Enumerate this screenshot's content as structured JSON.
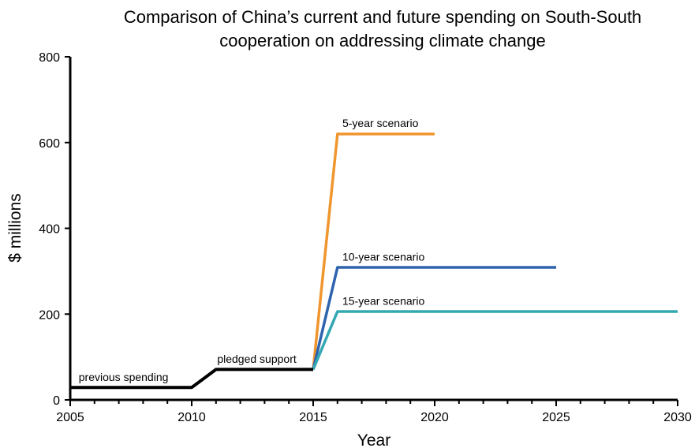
{
  "chart_data": {
    "type": "line",
    "title_lines": [
      "Comparison of China’s current and future spending on South-South",
      "cooperation on addressing climate change"
    ],
    "xlabel": "Year",
    "ylabel": "$ millions",
    "xlim": [
      2005,
      2030
    ],
    "ylim": [
      0,
      800
    ],
    "x_ticks": [
      2005,
      2010,
      2015,
      2020,
      2025,
      2030
    ],
    "y_ticks": [
      0,
      200,
      400,
      600,
      800
    ],
    "grid": false,
    "legend": "none",
    "series": [
      {
        "color": "#000000",
        "points": [
          [
            2005,
            29
          ],
          [
            2010,
            29
          ],
          [
            2011,
            71
          ],
          [
            2015,
            71
          ]
        ]
      },
      {
        "color": "#F0962E",
        "points": [
          [
            2015,
            71
          ],
          [
            2016,
            620
          ],
          [
            2020,
            620
          ]
        ]
      },
      {
        "color": "#2E63AE",
        "points": [
          [
            2015,
            71
          ],
          [
            2016,
            309
          ],
          [
            2025,
            309
          ]
        ]
      },
      {
        "color": "#34A8B3",
        "points": [
          [
            2015,
            71
          ],
          [
            2016,
            206
          ],
          [
            2030,
            206
          ]
        ]
      }
    ],
    "annotations": [
      {
        "text": "previous spending",
        "x": 2005.35,
        "y": 44
      },
      {
        "text": "pledged support",
        "x": 2011.05,
        "y": 86
      },
      {
        "text": "5-year scenario",
        "x": 2016.2,
        "y": 636
      },
      {
        "text": "10-year scenario",
        "x": 2016.2,
        "y": 325
      },
      {
        "text": "15-year scenario",
        "x": 2016.2,
        "y": 222
      }
    ]
  }
}
